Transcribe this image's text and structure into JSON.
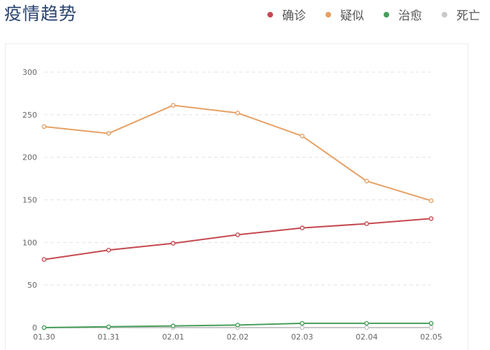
{
  "header": {
    "title": "疫情趋势"
  },
  "legend": [
    {
      "label": "确诊",
      "color": "#c5484f"
    },
    {
      "label": "疑似",
      "color": "#e6a064"
    },
    {
      "label": "治愈",
      "color": "#479e5a"
    },
    {
      "label": "死亡",
      "color": "#c8c8c8"
    }
  ],
  "chart_data": {
    "type": "line",
    "title": "疫情趋势",
    "categories": [
      "01.30",
      "01.31",
      "02.01",
      "02.02",
      "02.03",
      "02.04",
      "02.05"
    ],
    "ylim": [
      0,
      300
    ],
    "yticks": [
      0,
      50,
      100,
      150,
      200,
      250,
      300
    ],
    "grid": true,
    "legend_position": "top-right",
    "series": [
      {
        "name": "确诊",
        "color": "#c5484f",
        "values": [
          80,
          91,
          99,
          109,
          117,
          122,
          128
        ]
      },
      {
        "name": "疑似",
        "color": "#e6a064",
        "values": [
          236,
          228,
          261,
          252,
          225,
          172,
          149
        ]
      },
      {
        "name": "治愈",
        "color": "#479e5a",
        "values": [
          0,
          1,
          2,
          3,
          5,
          5,
          5
        ]
      },
      {
        "name": "死亡",
        "color": "#c8c8c8",
        "values": [
          0,
          0,
          0,
          0,
          0,
          0,
          0
        ]
      }
    ]
  }
}
